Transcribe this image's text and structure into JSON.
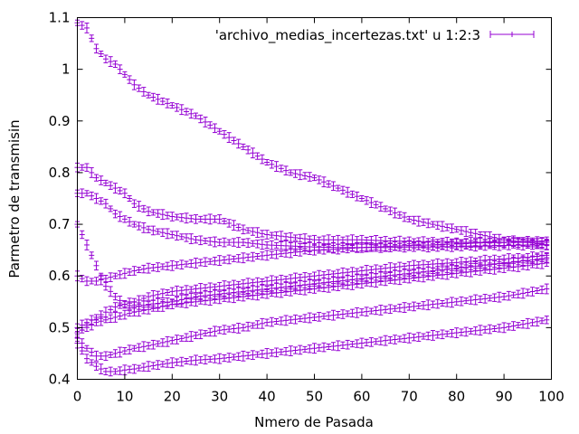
{
  "chart_data": {
    "type": "scatter",
    "xlabel": "Nmero de Pasada",
    "ylabel": "Parmetro de transmisin",
    "xlim": [
      0,
      100
    ],
    "ylim": [
      0.4,
      1.1
    ],
    "x_ticks": [
      "0",
      "10",
      "20",
      "30",
      "40",
      "50",
      "60",
      "70",
      "80",
      "90",
      "100"
    ],
    "y_ticks": [
      "0.4",
      "0.5",
      "0.6",
      "0.7",
      "0.8",
      "0.9",
      "1",
      "1.1"
    ],
    "grid": false,
    "legend_position": "top-right",
    "error_bars": true,
    "series_color": "#9400d3",
    "series": [
      {
        "name": "'archivo_medias_incertezas.txt' u 1:2:3",
        "curves": [
          {
            "x": [
              0,
              2,
              4,
              6,
              8,
              10,
              12,
              15,
              20,
              25,
              30,
              35,
              40,
              45,
              50,
              55,
              60,
              65,
              70,
              75,
              80,
              85,
              90,
              95,
              99
            ],
            "y": [
              1.09,
              1.08,
              1.04,
              1.02,
              1.01,
              0.99,
              0.97,
              0.95,
              0.93,
              0.91,
              0.88,
              0.85,
              0.82,
              0.8,
              0.79,
              0.77,
              0.75,
              0.73,
              0.71,
              0.7,
              0.69,
              0.68,
              0.67,
              0.665,
              0.66
            ]
          },
          {
            "x": [
              0,
              2,
              4,
              6,
              8,
              10,
              12,
              15,
              20,
              25,
              30,
              35,
              40,
              45,
              50,
              55,
              60,
              65,
              70,
              75,
              80,
              85,
              90,
              95,
              99
            ],
            "y": [
              0.81,
              0.81,
              0.79,
              0.78,
              0.77,
              0.76,
              0.74,
              0.725,
              0.715,
              0.71,
              0.71,
              0.69,
              0.68,
              0.675,
              0.67,
              0.67,
              0.67,
              0.668,
              0.667,
              0.666,
              0.665,
              0.665,
              0.665,
              0.665,
              0.665
            ]
          },
          {
            "x": [
              0,
              2,
              4,
              6,
              8,
              10,
              12,
              15,
              20,
              25,
              30,
              35,
              40,
              45,
              50,
              55,
              60,
              65,
              70,
              75,
              80,
              85,
              90,
              95,
              99
            ],
            "y": [
              0.76,
              0.76,
              0.75,
              0.74,
              0.72,
              0.71,
              0.7,
              0.69,
              0.68,
              0.67,
              0.665,
              0.665,
              0.66,
              0.658,
              0.656,
              0.655,
              0.655,
              0.655,
              0.656,
              0.656,
              0.657,
              0.658,
              0.659,
              0.66,
              0.66
            ]
          },
          {
            "x": [
              0,
              2,
              4,
              6,
              8,
              10,
              12,
              15,
              20,
              25,
              30,
              35,
              40,
              45,
              50,
              55,
              60,
              65,
              70,
              75,
              80,
              85,
              90,
              95,
              99
            ],
            "y": [
              0.6,
              0.59,
              0.59,
              0.595,
              0.6,
              0.605,
              0.61,
              0.615,
              0.62,
              0.625,
              0.63,
              0.635,
              0.64,
              0.645,
              0.65,
              0.652,
              0.655,
              0.657,
              0.659,
              0.66,
              0.662,
              0.664,
              0.665,
              0.667,
              0.668
            ]
          },
          {
            "x": [
              0,
              2,
              4,
              6,
              8,
              10,
              12,
              15,
              20,
              25,
              30,
              35,
              40,
              45,
              50,
              55,
              60,
              65,
              70,
              75,
              80,
              85,
              90,
              95,
              99
            ],
            "y": [
              0.5,
              0.51,
              0.52,
              0.53,
              0.54,
              0.545,
              0.55,
              0.56,
              0.57,
              0.575,
              0.58,
              0.585,
              0.59,
              0.595,
              0.6,
              0.605,
              0.61,
              0.615,
              0.62,
              0.623,
              0.626,
              0.63,
              0.633,
              0.636,
              0.64
            ]
          },
          {
            "x": [
              0,
              2,
              4,
              6,
              8,
              10,
              12,
              15,
              20,
              25,
              30,
              35,
              40,
              45,
              50,
              55,
              60,
              65,
              70,
              75,
              80,
              85,
              90,
              95,
              99
            ],
            "y": [
              0.7,
              0.66,
              0.62,
              0.58,
              0.56,
              0.545,
              0.54,
              0.545,
              0.55,
              0.56,
              0.565,
              0.57,
              0.575,
              0.58,
              0.585,
              0.59,
              0.595,
              0.6,
              0.605,
              0.61,
              0.615,
              0.62,
              0.625,
              0.63,
              0.635
            ]
          },
          {
            "x": [
              0,
              2,
              4,
              6,
              8,
              10,
              12,
              15,
              20,
              25,
              30,
              35,
              40,
              45,
              50,
              55,
              60,
              65,
              70,
              75,
              80,
              85,
              90,
              95,
              99
            ],
            "y": [
              0.49,
              0.5,
              0.51,
              0.515,
              0.52,
              0.525,
              0.53,
              0.535,
              0.545,
              0.55,
              0.555,
              0.56,
              0.565,
              0.57,
              0.575,
              0.58,
              0.585,
              0.59,
              0.595,
              0.6,
              0.605,
              0.61,
              0.615,
              0.62,
              0.625
            ]
          },
          {
            "x": [
              0,
              2,
              4,
              6,
              8,
              10,
              12,
              15,
              20,
              25,
              30,
              35,
              40,
              45,
              50,
              55,
              60,
              65,
              70,
              75,
              80,
              85,
              90,
              95,
              99
            ],
            "y": [
              0.48,
              0.46,
              0.445,
              0.445,
              0.45,
              0.455,
              0.46,
              0.465,
              0.475,
              0.485,
              0.495,
              0.5,
              0.51,
              0.515,
              0.52,
              0.525,
              0.53,
              0.535,
              0.54,
              0.545,
              0.55,
              0.555,
              0.56,
              0.568,
              0.575
            ]
          },
          {
            "x": [
              0,
              2,
              4,
              6,
              8,
              10,
              12,
              15,
              20,
              25,
              30,
              35,
              40,
              45,
              50,
              55,
              60,
              65,
              70,
              75,
              80,
              85,
              90,
              95,
              99
            ],
            "y": [
              0.47,
              0.44,
              0.425,
              0.415,
              0.415,
              0.418,
              0.42,
              0.425,
              0.432,
              0.437,
              0.44,
              0.445,
              0.45,
              0.455,
              0.46,
              0.465,
              0.47,
              0.475,
              0.48,
              0.485,
              0.49,
              0.495,
              0.5,
              0.508,
              0.515
            ]
          }
        ]
      }
    ]
  }
}
